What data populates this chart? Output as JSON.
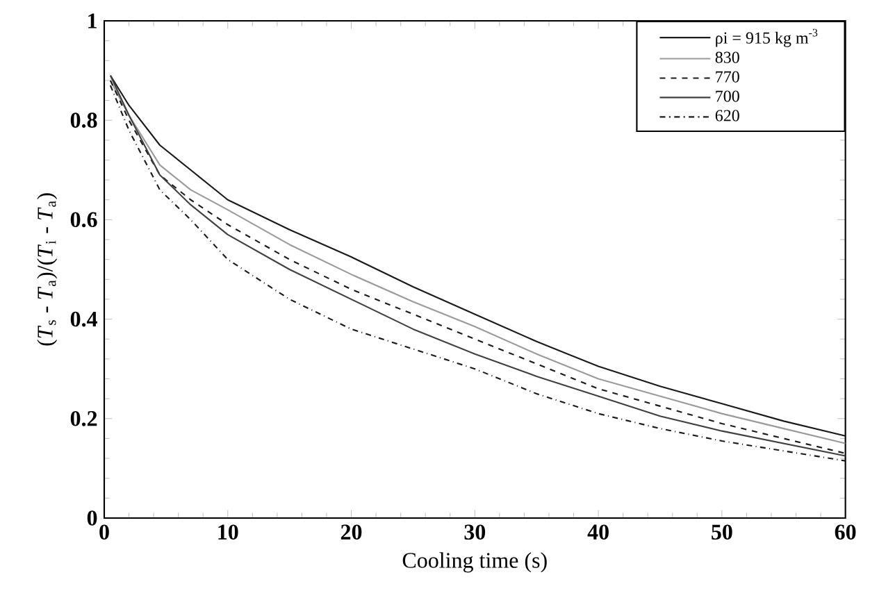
{
  "chart_data": {
    "type": "line",
    "xlabel": "Cooling time (s)",
    "ylabel": "(*T*$_{s}$ - *T*$_{a}$)/(*T*$_{i}$ - *T*$_{a}$)",
    "xlim": [
      0,
      60
    ],
    "ylim": [
      0,
      1
    ],
    "xticks": [
      0,
      10,
      20,
      30,
      40,
      50,
      60
    ],
    "yticks": [
      0,
      0.2,
      0.4,
      0.6,
      0.8,
      1
    ],
    "legend": "top right",
    "x": [
      0.5,
      2,
      4.5,
      7,
      10,
      15,
      20,
      25,
      30,
      35,
      40,
      45,
      50,
      55,
      60
    ],
    "series": [
      {
        "name": "ρi = 915 kg m$^{-3}$",
        "color": "#1a1a1a",
        "line_style": "solid",
        "values": [
          0.89,
          0.83,
          0.75,
          0.7,
          0.64,
          0.58,
          0.525,
          0.465,
          0.41,
          0.355,
          0.305,
          0.265,
          0.23,
          0.195,
          0.165
        ]
      },
      {
        "name": "830",
        "color": "#9a9a9a",
        "line_style": "solid",
        "values": [
          0.88,
          0.81,
          0.71,
          0.66,
          0.62,
          0.55,
          0.49,
          0.435,
          0.385,
          0.33,
          0.28,
          0.245,
          0.21,
          0.18,
          0.15
        ]
      },
      {
        "name": "770",
        "color": "#1a1a1a",
        "line_style": "dashed",
        "values": [
          0.88,
          0.8,
          0.69,
          0.64,
          0.59,
          0.52,
          0.46,
          0.41,
          0.36,
          0.31,
          0.26,
          0.225,
          0.19,
          0.16,
          0.13
        ]
      },
      {
        "name": "700",
        "color": "#404040",
        "line_style": "solid",
        "values": [
          0.89,
          0.81,
          0.69,
          0.63,
          0.57,
          0.5,
          0.44,
          0.38,
          0.33,
          0.285,
          0.245,
          0.205,
          0.175,
          0.15,
          0.125
        ]
      },
      {
        "name": "620",
        "color": "#1a1a1a",
        "line_style": "dashdot",
        "values": [
          0.87,
          0.78,
          0.66,
          0.6,
          0.52,
          0.44,
          0.38,
          0.34,
          0.3,
          0.25,
          0.21,
          0.18,
          0.155,
          0.135,
          0.115
        ]
      }
    ]
  }
}
